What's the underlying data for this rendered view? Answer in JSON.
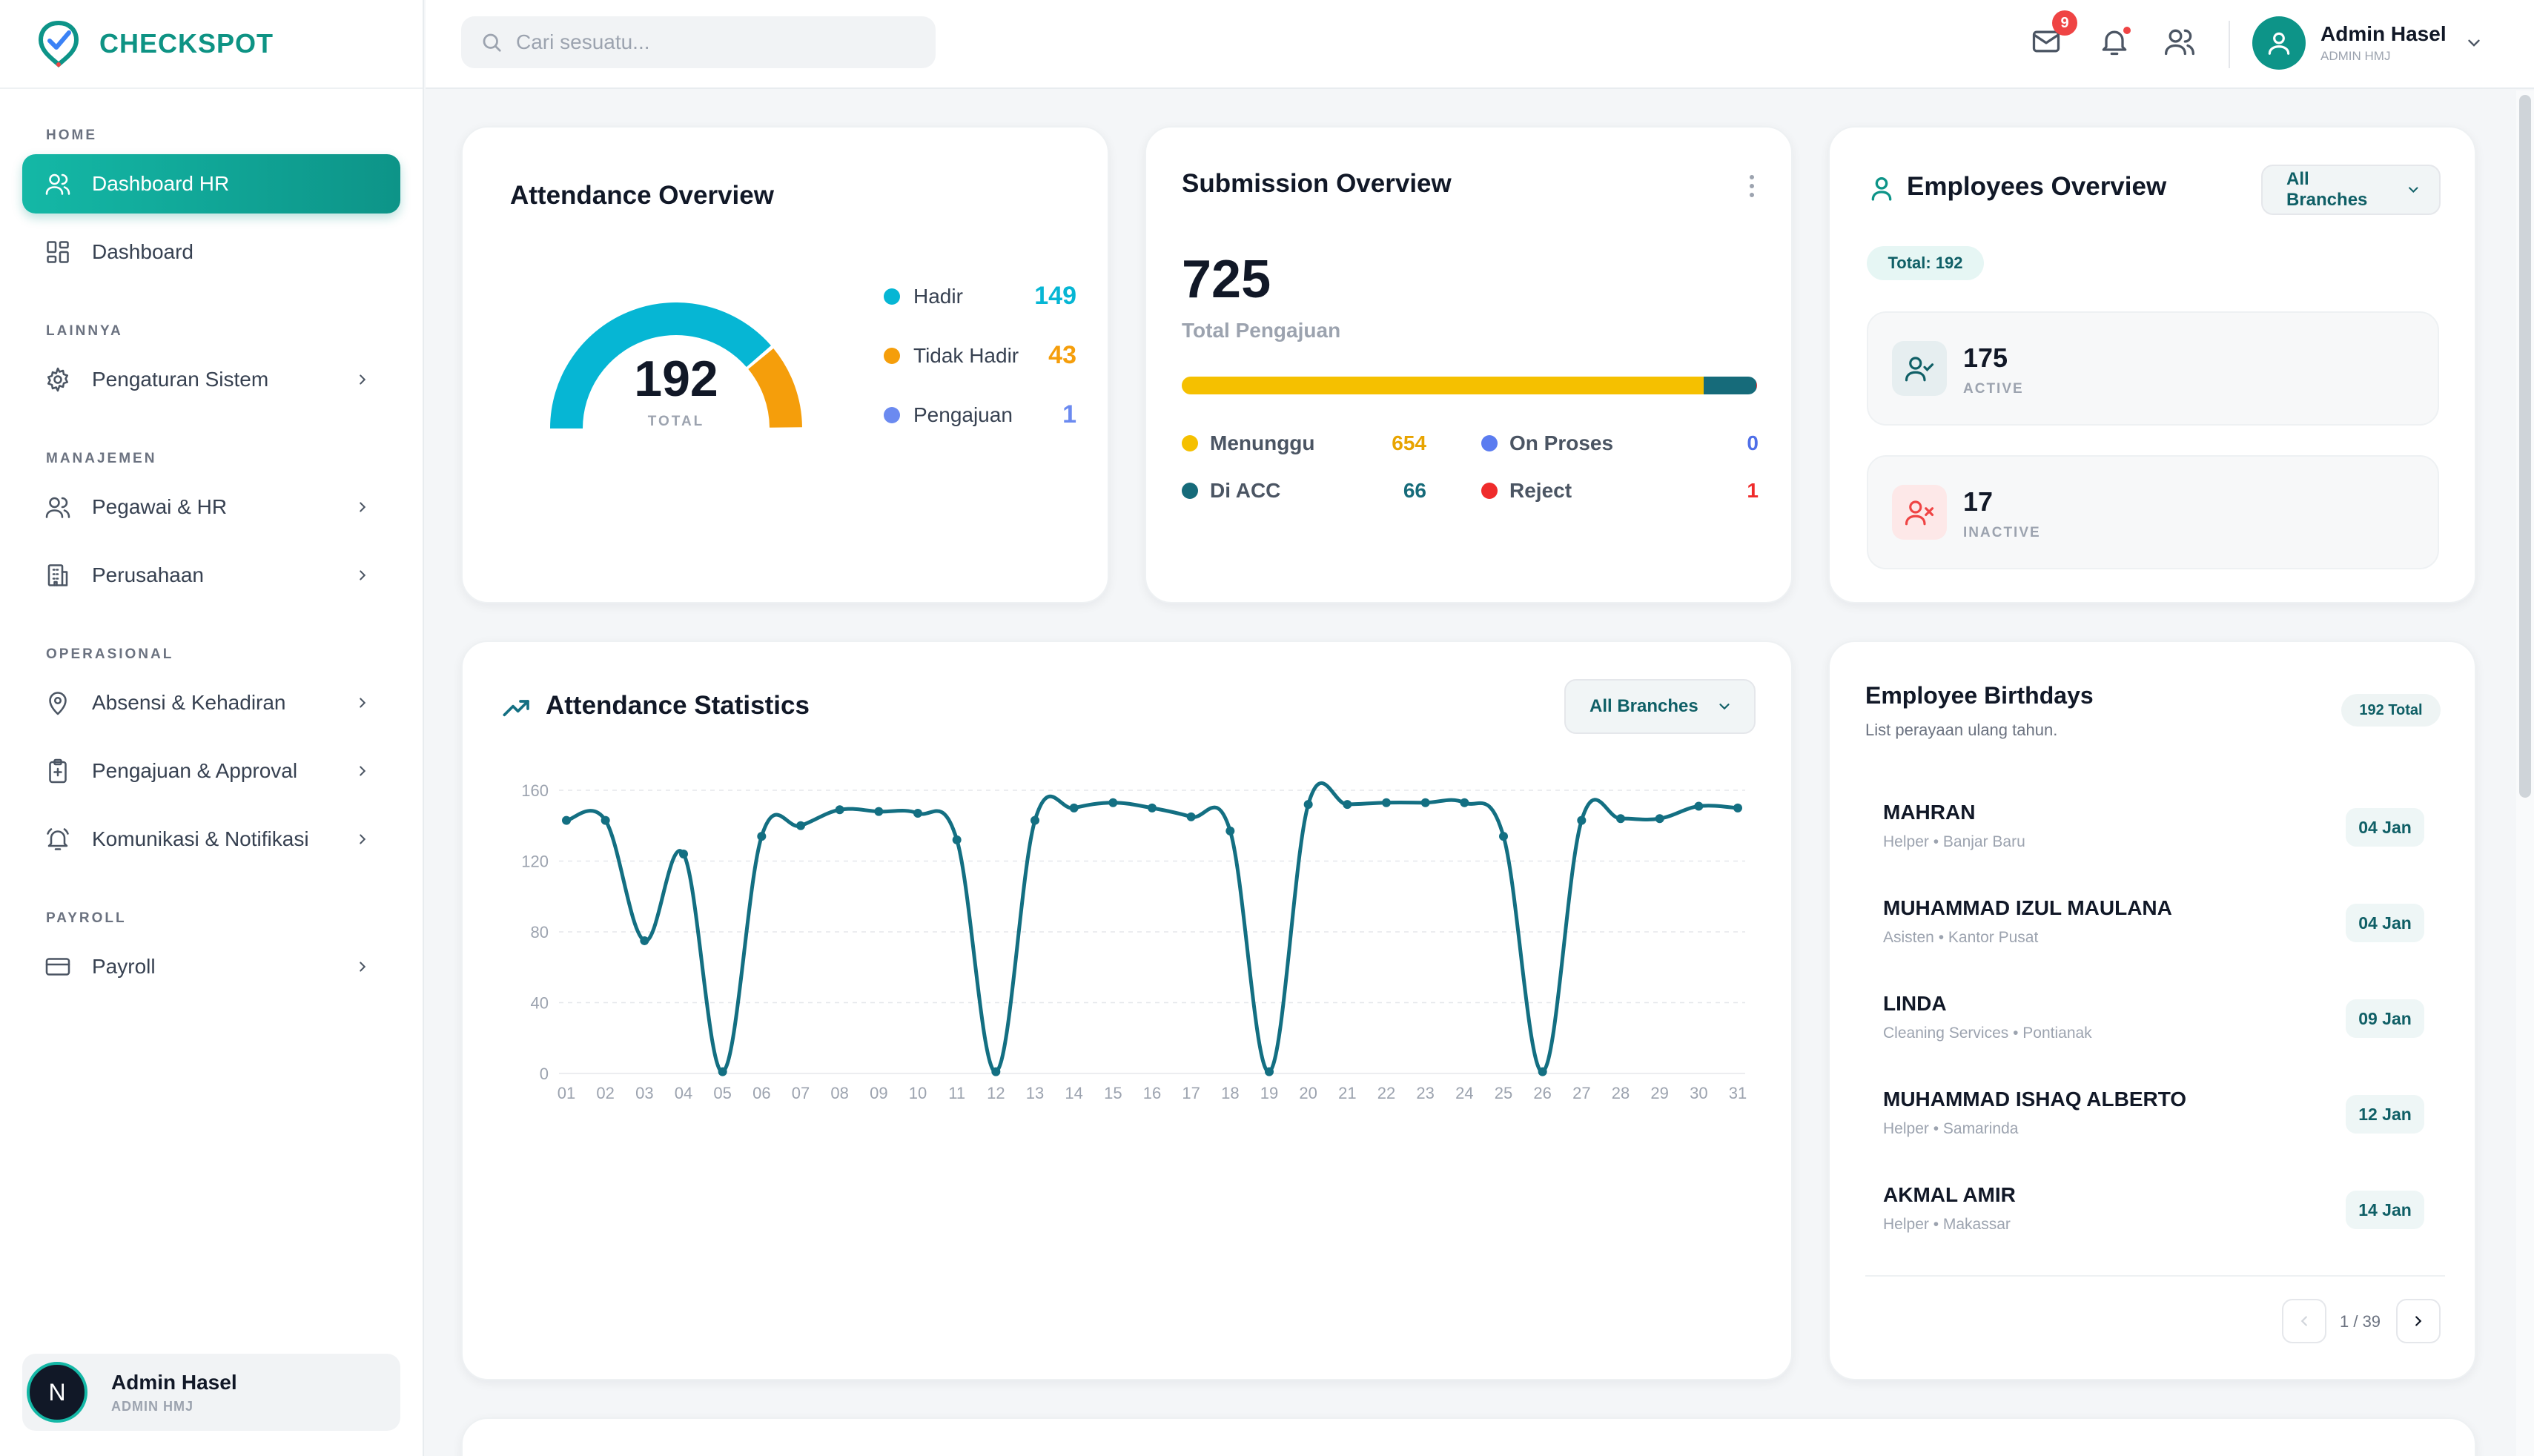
{
  "brand": {
    "name": "CHECKSPOT"
  },
  "sidebar": {
    "sections": [
      {
        "title": "HOME",
        "items": [
          {
            "label": "Dashboard HR",
            "icon": "users-icon",
            "active": true,
            "chevron": false
          },
          {
            "label": "Dashboard",
            "icon": "grid-icon",
            "active": false,
            "chevron": false
          }
        ]
      },
      {
        "title": "LAINNYA",
        "items": [
          {
            "label": "Pengaturan Sistem",
            "icon": "gear-icon",
            "active": false,
            "chevron": true
          }
        ]
      },
      {
        "title": "MANAJEMEN",
        "items": [
          {
            "label": "Pegawai & HR",
            "icon": "users-icon",
            "active": false,
            "chevron": true
          },
          {
            "label": "Perusahaan",
            "icon": "building-icon",
            "active": false,
            "chevron": true
          }
        ]
      },
      {
        "title": "OPERASIONAL",
        "items": [
          {
            "label": "Absensi & Kehadiran",
            "icon": "map-pin-icon",
            "active": false,
            "chevron": true
          },
          {
            "label": "Pengajuan & Approval",
            "icon": "clipboard-plus-icon",
            "active": false,
            "chevron": true
          },
          {
            "label": "Komunikasi & Notifikasi",
            "icon": "bell-ring-icon",
            "active": false,
            "chevron": true
          }
        ]
      },
      {
        "title": "PAYROLL",
        "items": [
          {
            "label": "Payroll",
            "icon": "credit-card-icon",
            "active": false,
            "chevron": true
          }
        ]
      }
    ],
    "user": {
      "initial": "N",
      "name": "Admin Hasel",
      "role": "ADMIN HMJ"
    }
  },
  "header": {
    "search_placeholder": "Cari sesuatu...",
    "mail_badge": "9",
    "user": {
      "name": "Admin Hasel",
      "role": "ADMIN HMJ"
    }
  },
  "attendance_overview": {
    "title": "Attendance Overview",
    "total": "192",
    "total_label": "TOTAL",
    "legend": [
      {
        "label": "Hadir",
        "value": "149",
        "color": "#06b6d4"
      },
      {
        "label": "Tidak Hadir",
        "value": "43",
        "color": "#f59e0b"
      },
      {
        "label": "Pengajuan",
        "value": "1",
        "color": "#6b8af0"
      }
    ],
    "gauge": {
      "hadir": 149,
      "tidak_hadir": 43,
      "pengajuan": 1,
      "total": 192
    }
  },
  "submission_overview": {
    "title": "Submission Overview",
    "total": "725",
    "total_label": "Total Pengajuan",
    "bar": {
      "menunggu": 654,
      "on_proses": 0,
      "di_acc": 66,
      "reject": 1
    },
    "stats": [
      {
        "label": "Menunggu",
        "value": "654",
        "color": "#f5c000",
        "value_color": "#e8a400"
      },
      {
        "label": "On Proses",
        "value": "0",
        "color": "#5b7cf0",
        "value_color": "#4f6fe8"
      },
      {
        "label": "Di ACC",
        "value": "66",
        "color": "#166b7a",
        "value_color": "#166b7a"
      },
      {
        "label": "Reject",
        "value": "1",
        "color": "#ef2b2b",
        "value_color": "#ef2b2b"
      }
    ]
  },
  "employees_overview": {
    "title": "Employees Overview",
    "branch_select": "All Branches",
    "total_pill": "Total: 192",
    "active": {
      "value": "175",
      "label": "ACTIVE"
    },
    "inactive": {
      "value": "17",
      "label": "INACTIVE"
    }
  },
  "attendance_statistics": {
    "title": "Attendance Statistics",
    "branch_select": "All Branches"
  },
  "chart_data": {
    "type": "line",
    "title": "Attendance Statistics",
    "x": [
      "01",
      "02",
      "03",
      "04",
      "05",
      "06",
      "07",
      "08",
      "09",
      "10",
      "11",
      "12",
      "13",
      "14",
      "15",
      "16",
      "17",
      "18",
      "19",
      "20",
      "21",
      "22",
      "23",
      "24",
      "25",
      "26",
      "27",
      "28",
      "29",
      "30",
      "31"
    ],
    "series": [
      {
        "color": "#136f82",
        "values": [
          143,
          143,
          75,
          124,
          1,
          134,
          140,
          149,
          148,
          147,
          132,
          1,
          143,
          150,
          153,
          150,
          145,
          137,
          1,
          152,
          152,
          153,
          153,
          153,
          134,
          1,
          143,
          144,
          144,
          151,
          150
        ]
      }
    ],
    "ylim": [
      0,
      160
    ],
    "yticks": [
      0,
      40,
      80,
      120,
      160
    ],
    "grid": true
  },
  "birthdays": {
    "title": "Employee Birthdays",
    "subtitle": "List perayaan ulang tahun.",
    "total_pill": "192 Total",
    "items": [
      {
        "name": "MAHRAN",
        "sub": "Helper • Banjar Baru",
        "date": "04 Jan"
      },
      {
        "name": "MUHAMMAD IZUL MAULANA",
        "sub": "Asisten • Kantor Pusat",
        "date": "04 Jan"
      },
      {
        "name": "LINDA",
        "sub": "Cleaning Services • Pontianak",
        "date": "09 Jan"
      },
      {
        "name": "MUHAMMAD ISHAQ ALBERTO",
        "sub": "Helper • Samarinda",
        "date": "12 Jan"
      },
      {
        "name": "AKMAL AMIR",
        "sub": "Helper • Makassar",
        "date": "14 Jan"
      }
    ],
    "pager": "1 / 39"
  }
}
